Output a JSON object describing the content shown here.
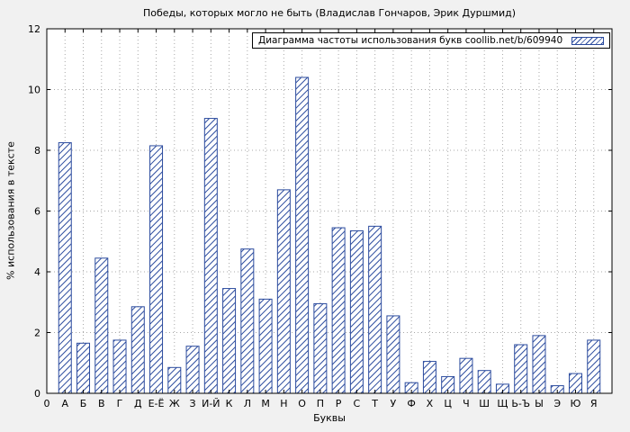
{
  "chart_data": {
    "type": "bar",
    "title": "Победы, которых могло не быть (Владислав Гончаров, Эрик Дуршмид)",
    "legend": "Диаграмма частоты использования букв coollib.net/b/609940",
    "xlabel": "Буквы",
    "ylabel": "% использования в тексте",
    "origin_label": "0",
    "categories": [
      "А",
      "Б",
      "В",
      "Г",
      "Д",
      "Е-Ё",
      "Ж",
      "З",
      "И-Й",
      "К",
      "Л",
      "М",
      "Н",
      "О",
      "П",
      "Р",
      "С",
      "Т",
      "У",
      "Ф",
      "Х",
      "Ц",
      "Ч",
      "Ш",
      "Щ",
      "Ь-Ъ",
      "Ы",
      "Э",
      "Ю",
      "Я"
    ],
    "values": [
      8.25,
      1.65,
      4.45,
      1.75,
      2.85,
      8.15,
      0.85,
      1.55,
      9.05,
      3.45,
      4.75,
      3.1,
      6.7,
      10.4,
      2.95,
      5.45,
      5.35,
      5.5,
      2.55,
      0.35,
      1.05,
      0.55,
      1.15,
      0.75,
      0.3,
      1.6,
      1.9,
      0.25,
      0.65,
      1.75
    ],
    "ylim": [
      0,
      12
    ],
    "ytick_step": 2,
    "grid": "dotted",
    "legend_position": "top-right",
    "colors": {
      "bar_stroke": "#2b4b9e",
      "bar_fill": "#ffffff",
      "grid": "#a8a8a8",
      "axis": "#000000",
      "background": "#f1f1f1",
      "plot_background": "#ffffff"
    }
  }
}
